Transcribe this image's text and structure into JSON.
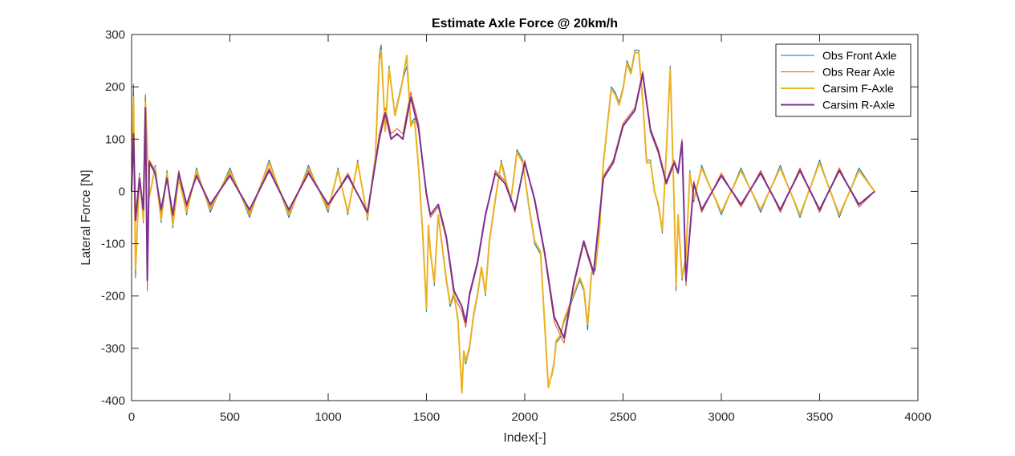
{
  "chart_data": {
    "type": "line",
    "title": "Estimate Axle Force @ 20km/h",
    "xlabel": "Index[-]",
    "ylabel": "Lateral Force [N]",
    "xlim": [
      0,
      4000
    ],
    "ylim": [
      -400,
      300
    ],
    "xticks": [
      0,
      500,
      1000,
      1500,
      2000,
      2500,
      3000,
      3500,
      4000
    ],
    "yticks": [
      300,
      200,
      100,
      0,
      -100,
      -200,
      -300,
      -400
    ],
    "xtick_labels": [
      "0",
      "500",
      "1000",
      "1500",
      "2000",
      "2500",
      "3000",
      "3500",
      "4000"
    ],
    "ytick_labels": [
      "300",
      "200",
      "100",
      "0",
      "-100",
      "-200",
      "-300",
      "-400"
    ],
    "grid": false,
    "legend_position": "top-right",
    "series": [
      {
        "name": "Obs Front Axle",
        "color": "#0072BD",
        "x": [
          0,
          10,
          20,
          40,
          60,
          70,
          90,
          120,
          150,
          180,
          210,
          240,
          280,
          330,
          400,
          500,
          600,
          700,
          800,
          900,
          1000,
          1050,
          1100,
          1150,
          1200,
          1240,
          1260,
          1270,
          1290,
          1310,
          1340,
          1370,
          1400,
          1420,
          1440,
          1460,
          1480,
          1500,
          1510,
          1520,
          1540,
          1560,
          1580,
          1600,
          1620,
          1640,
          1660,
          1680,
          1690,
          1700,
          1720,
          1740,
          1760,
          1780,
          1800,
          1820,
          1850,
          1880,
          1900,
          1930,
          1960,
          1990,
          2020,
          2050,
          2080,
          2100,
          2120,
          2140,
          2150,
          2160,
          2180,
          2200,
          2220,
          2250,
          2280,
          2300,
          2320,
          2340,
          2360,
          2380,
          2400,
          2420,
          2440,
          2460,
          2480,
          2500,
          2520,
          2540,
          2560,
          2580,
          2600,
          2620,
          2640,
          2660,
          2680,
          2700,
          2720,
          2740,
          2760,
          2770,
          2780,
          2800,
          2820,
          2840,
          2860,
          2900,
          3000,
          3100,
          3200,
          3300,
          3400,
          3500,
          3600,
          3700,
          3780
        ],
        "y": [
          0,
          205,
          -165,
          35,
          -60,
          185,
          -10,
          50,
          -60,
          40,
          -70,
          30,
          -45,
          45,
          -40,
          45,
          -50,
          60,
          -50,
          50,
          -40,
          45,
          -45,
          60,
          -55,
          70,
          260,
          280,
          120,
          240,
          150,
          200,
          240,
          130,
          140,
          50,
          -80,
          -230,
          -70,
          -120,
          -180,
          -50,
          -110,
          -170,
          -220,
          -200,
          -250,
          -370,
          -310,
          -330,
          -300,
          -240,
          -200,
          -150,
          -200,
          -100,
          -20,
          60,
          30,
          -20,
          80,
          60,
          -30,
          -100,
          -120,
          -250,
          -370,
          -350,
          -330,
          -290,
          -280,
          -250,
          -230,
          -200,
          -170,
          -190,
          -265,
          -160,
          -150,
          -80,
          60,
          130,
          200,
          190,
          170,
          200,
          250,
          230,
          270,
          270,
          180,
          60,
          60,
          0,
          -30,
          -80,
          80,
          240,
          -30,
          -190,
          -50,
          -170,
          -130,
          40,
          -20,
          50,
          -45,
          45,
          -40,
          50,
          -50,
          60,
          -50,
          45,
          0
        ]
      },
      {
        "name": "Obs Rear Axle",
        "color": "#D95319",
        "x": [
          0,
          10,
          20,
          40,
          60,
          70,
          80,
          90,
          120,
          150,
          180,
          210,
          240,
          280,
          330,
          400,
          500,
          600,
          700,
          800,
          900,
          1000,
          1100,
          1200,
          1260,
          1290,
          1320,
          1350,
          1380,
          1420,
          1460,
          1500,
          1520,
          1560,
          1600,
          1640,
          1680,
          1700,
          1720,
          1760,
          1800,
          1850,
          1900,
          1950,
          2000,
          2050,
          2100,
          2150,
          2200,
          2250,
          2300,
          2350,
          2400,
          2450,
          2500,
          2560,
          2600,
          2640,
          2680,
          2720,
          2760,
          2780,
          2800,
          2820,
          2860,
          2900,
          3000,
          3100,
          3200,
          3300,
          3400,
          3500,
          3600,
          3700,
          3780
        ],
        "y": [
          0,
          130,
          -60,
          30,
          -40,
          185,
          -190,
          60,
          40,
          -40,
          30,
          -50,
          40,
          -30,
          35,
          -30,
          35,
          -40,
          45,
          -40,
          40,
          -30,
          35,
          -45,
          110,
          160,
          110,
          120,
          110,
          190,
          130,
          -10,
          -50,
          -30,
          -90,
          -200,
          -230,
          -260,
          -200,
          -140,
          -50,
          40,
          20,
          -40,
          60,
          -20,
          -120,
          -250,
          -290,
          -180,
          -100,
          -160,
          30,
          60,
          130,
          160,
          230,
          120,
          80,
          20,
          60,
          40,
          100,
          -180,
          20,
          -40,
          35,
          -30,
          40,
          -40,
          45,
          -40,
          45,
          -30,
          0
        ]
      },
      {
        "name": "Carsim F-Axle",
        "color": "#EDB120",
        "x": [
          0,
          10,
          20,
          40,
          60,
          70,
          90,
          120,
          150,
          180,
          210,
          240,
          280,
          330,
          400,
          500,
          600,
          700,
          800,
          900,
          1000,
          1050,
          1100,
          1150,
          1200,
          1240,
          1260,
          1270,
          1290,
          1310,
          1340,
          1370,
          1400,
          1420,
          1440,
          1460,
          1480,
          1500,
          1510,
          1520,
          1540,
          1560,
          1580,
          1600,
          1620,
          1640,
          1660,
          1680,
          1690,
          1700,
          1720,
          1740,
          1760,
          1780,
          1800,
          1820,
          1850,
          1880,
          1900,
          1930,
          1960,
          1990,
          2020,
          2050,
          2080,
          2100,
          2120,
          2140,
          2150,
          2160,
          2180,
          2200,
          2220,
          2250,
          2280,
          2300,
          2320,
          2340,
          2360,
          2380,
          2400,
          2420,
          2440,
          2460,
          2480,
          2500,
          2520,
          2540,
          2560,
          2580,
          2600,
          2620,
          2640,
          2660,
          2680,
          2700,
          2720,
          2740,
          2760,
          2770,
          2780,
          2800,
          2820,
          2840,
          2860,
          2900,
          3000,
          3100,
          3200,
          3300,
          3400,
          3500,
          3600,
          3700,
          3780
        ],
        "y": [
          0,
          180,
          -150,
          30,
          -55,
          170,
          -10,
          45,
          -55,
          35,
          -65,
          25,
          -40,
          40,
          -35,
          40,
          -45,
          55,
          -45,
          45,
          -35,
          40,
          -40,
          55,
          -50,
          65,
          250,
          270,
          115,
          235,
          145,
          195,
          260,
          125,
          135,
          45,
          -75,
          -225,
          -65,
          -115,
          -175,
          -45,
          -105,
          -165,
          -215,
          -195,
          -245,
          -385,
          -305,
          -325,
          -295,
          -235,
          -195,
          -145,
          -195,
          -95,
          -15,
          55,
          25,
          -15,
          75,
          55,
          -25,
          -95,
          -115,
          -245,
          -375,
          -345,
          -325,
          -285,
          -275,
          -245,
          -225,
          -195,
          -165,
          -185,
          -255,
          -155,
          -145,
          -75,
          55,
          125,
          195,
          185,
          165,
          195,
          245,
          225,
          265,
          265,
          175,
          55,
          55,
          0,
          -25,
          -75,
          75,
          235,
          -25,
          -180,
          -45,
          -165,
          -125,
          35,
          -15,
          45,
          -40,
          40,
          -35,
          45,
          -45,
          55,
          -45,
          40,
          0
        ]
      },
      {
        "name": "Carsim R-Axle",
        "color": "#7E2F8E",
        "x": [
          0,
          10,
          20,
          40,
          60,
          70,
          80,
          90,
          120,
          150,
          180,
          210,
          240,
          280,
          330,
          400,
          500,
          600,
          700,
          800,
          900,
          1000,
          1100,
          1200,
          1260,
          1290,
          1320,
          1350,
          1380,
          1420,
          1460,
          1500,
          1520,
          1560,
          1600,
          1640,
          1680,
          1700,
          1720,
          1760,
          1800,
          1850,
          1900,
          1950,
          2000,
          2050,
          2100,
          2150,
          2200,
          2250,
          2300,
          2350,
          2400,
          2450,
          2500,
          2560,
          2600,
          2640,
          2680,
          2720,
          2760,
          2780,
          2800,
          2820,
          2860,
          2900,
          3000,
          3100,
          3200,
          3300,
          3400,
          3500,
          3600,
          3700,
          3780
        ],
        "y": [
          0,
          110,
          -55,
          25,
          -35,
          160,
          -170,
          55,
          35,
          -35,
          25,
          -45,
          35,
          -25,
          30,
          -25,
          30,
          -35,
          40,
          -35,
          35,
          -25,
          30,
          -40,
          100,
          150,
          100,
          110,
          100,
          180,
          120,
          -5,
          -45,
          -25,
          -85,
          -190,
          -220,
          -250,
          -195,
          -135,
          -45,
          35,
          15,
          -35,
          55,
          -15,
          -115,
          -240,
          -280,
          -175,
          -95,
          -155,
          25,
          55,
          125,
          155,
          225,
          115,
          75,
          15,
          55,
          35,
          95,
          -170,
          15,
          -35,
          30,
          -25,
          35,
          -35,
          40,
          -35,
          40,
          -25,
          0
        ]
      }
    ]
  }
}
